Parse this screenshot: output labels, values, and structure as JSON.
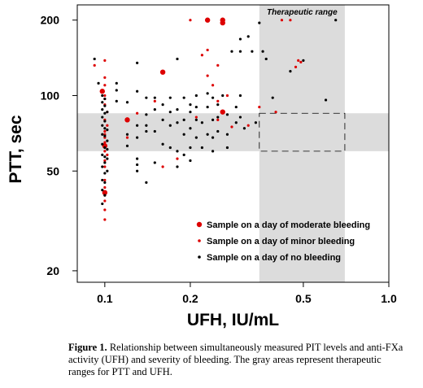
{
  "figure": {
    "caption_label": "Figure 1.",
    "caption_text": "Relationship between simultaneously measured PIT levels and anti-FXa activity (UFH) and severity of bleeding. The gray areas represent therapeutic ranges for PTT and UFH."
  },
  "chart_data": {
    "type": "scatter",
    "xlabel": "UFH, IU/mL",
    "ylabel": "PTT, sec",
    "x_scale": "log",
    "y_scale": "log",
    "xlim": [
      0.08,
      1.0
    ],
    "ylim": [
      18,
      230
    ],
    "x_ticks": [
      0.1,
      0.2,
      0.5,
      1.0
    ],
    "x_tick_labels": [
      "0.1",
      "0.2",
      "0.5",
      "1.0"
    ],
    "y_ticks": [
      20,
      50,
      100,
      200
    ],
    "y_tick_labels": [
      "20",
      "50",
      "100",
      "200"
    ],
    "grid": false,
    "legend_position": "lower-right",
    "annotation": "Therapeutic range",
    "therapeutic_ranges": {
      "ufh": [
        0.35,
        0.7
      ],
      "ptt": [
        60,
        85
      ]
    },
    "colors": {
      "bleeding": "#dd0000",
      "none": "#000000",
      "band": "#dcdcdc"
    },
    "series": [
      {
        "name": "Sample on a day of moderate bleeding",
        "color": "#dd0000",
        "marker_size": "large",
        "points": [
          [
            0.098,
            104
          ],
          [
            0.1,
            41
          ],
          [
            0.1,
            63
          ],
          [
            0.12,
            80
          ],
          [
            0.16,
            124
          ],
          [
            0.23,
            200
          ],
          [
            0.26,
            200
          ],
          [
            0.26,
            195
          ],
          [
            0.26,
            86
          ]
        ]
      },
      {
        "name": "Sample on a day of minor bleeding",
        "color": "#dd0000",
        "marker_size": "small",
        "points": [
          [
            0.092,
            132
          ],
          [
            0.1,
            138
          ],
          [
            0.1,
            118
          ],
          [
            0.1,
            110
          ],
          [
            0.1,
            100
          ],
          [
            0.1,
            97
          ],
          [
            0.1,
            92
          ],
          [
            0.1,
            80
          ],
          [
            0.1,
            72
          ],
          [
            0.1,
            70
          ],
          [
            0.1,
            68
          ],
          [
            0.1,
            65
          ],
          [
            0.1,
            60
          ],
          [
            0.1,
            55
          ],
          [
            0.1,
            52
          ],
          [
            0.1,
            46
          ],
          [
            0.1,
            43
          ],
          [
            0.1,
            40
          ],
          [
            0.1,
            38
          ],
          [
            0.1,
            35
          ],
          [
            0.1,
            32
          ],
          [
            0.102,
            86
          ],
          [
            0.102,
            76
          ],
          [
            0.102,
            58
          ],
          [
            0.12,
            68
          ],
          [
            0.13,
            85
          ],
          [
            0.15,
            95
          ],
          [
            0.16,
            52
          ],
          [
            0.18,
            56
          ],
          [
            0.2,
            200
          ],
          [
            0.21,
            82
          ],
          [
            0.22,
            145
          ],
          [
            0.23,
            152
          ],
          [
            0.23,
            120
          ],
          [
            0.24,
            110
          ],
          [
            0.25,
            132
          ],
          [
            0.25,
            95
          ],
          [
            0.25,
            80
          ],
          [
            0.27,
            100
          ],
          [
            0.28,
            75
          ],
          [
            0.32,
            76
          ],
          [
            0.35,
            90
          ],
          [
            0.4,
            86
          ],
          [
            0.42,
            200
          ],
          [
            0.45,
            200
          ],
          [
            0.47,
            130
          ],
          [
            0.48,
            138
          ],
          [
            0.49,
            136
          ]
        ]
      },
      {
        "name": "Sample on a day of no bleeding",
        "color": "#000000",
        "marker_size": "small",
        "points": [
          [
            0.092,
            140
          ],
          [
            0.095,
            112
          ],
          [
            0.098,
            100
          ],
          [
            0.098,
            94
          ],
          [
            0.098,
            88
          ],
          [
            0.098,
            82
          ],
          [
            0.098,
            76
          ],
          [
            0.098,
            70
          ],
          [
            0.098,
            64
          ],
          [
            0.098,
            58
          ],
          [
            0.098,
            52
          ],
          [
            0.098,
            46
          ],
          [
            0.098,
            42
          ],
          [
            0.098,
            37
          ],
          [
            0.1,
            97
          ],
          [
            0.1,
            91
          ],
          [
            0.1,
            85
          ],
          [
            0.1,
            79
          ],
          [
            0.1,
            74
          ],
          [
            0.1,
            69
          ],
          [
            0.1,
            62
          ],
          [
            0.1,
            57
          ],
          [
            0.1,
            54
          ],
          [
            0.1,
            49
          ],
          [
            0.1,
            45
          ],
          [
            0.1,
            40
          ],
          [
            0.102,
            86
          ],
          [
            0.102,
            73
          ],
          [
            0.102,
            66
          ],
          [
            0.102,
            61
          ],
          [
            0.102,
            56
          ],
          [
            0.102,
            50
          ],
          [
            0.11,
            112
          ],
          [
            0.11,
            105
          ],
          [
            0.11,
            95
          ],
          [
            0.12,
            94
          ],
          [
            0.12,
            70
          ],
          [
            0.12,
            63
          ],
          [
            0.13,
            135
          ],
          [
            0.13,
            104
          ],
          [
            0.13,
            76
          ],
          [
            0.13,
            68
          ],
          [
            0.13,
            56
          ],
          [
            0.13,
            53
          ],
          [
            0.13,
            50
          ],
          [
            0.14,
            98
          ],
          [
            0.14,
            84
          ],
          [
            0.14,
            76
          ],
          [
            0.14,
            72
          ],
          [
            0.14,
            45
          ],
          [
            0.15,
            98
          ],
          [
            0.15,
            88
          ],
          [
            0.15,
            72
          ],
          [
            0.15,
            54
          ],
          [
            0.16,
            92
          ],
          [
            0.16,
            80
          ],
          [
            0.16,
            64
          ],
          [
            0.17,
            98
          ],
          [
            0.17,
            86
          ],
          [
            0.17,
            76
          ],
          [
            0.17,
            62
          ],
          [
            0.18,
            140
          ],
          [
            0.18,
            88
          ],
          [
            0.18,
            78
          ],
          [
            0.18,
            60
          ],
          [
            0.18,
            52
          ],
          [
            0.19,
            98
          ],
          [
            0.19,
            80
          ],
          [
            0.19,
            70
          ],
          [
            0.19,
            58
          ],
          [
            0.2,
            92
          ],
          [
            0.2,
            86
          ],
          [
            0.2,
            74
          ],
          [
            0.2,
            62
          ],
          [
            0.2,
            55
          ],
          [
            0.21,
            100
          ],
          [
            0.21,
            90
          ],
          [
            0.21,
            80
          ],
          [
            0.21,
            68
          ],
          [
            0.22,
            78
          ],
          [
            0.22,
            62
          ],
          [
            0.23,
            102
          ],
          [
            0.23,
            90
          ],
          [
            0.23,
            70
          ],
          [
            0.24,
            98
          ],
          [
            0.24,
            80
          ],
          [
            0.24,
            68
          ],
          [
            0.24,
            60
          ],
          [
            0.25,
            92
          ],
          [
            0.25,
            82
          ],
          [
            0.25,
            72
          ],
          [
            0.26,
            100
          ],
          [
            0.27,
            84
          ],
          [
            0.27,
            70
          ],
          [
            0.27,
            62
          ],
          [
            0.28,
            150
          ],
          [
            0.29,
            90
          ],
          [
            0.29,
            78
          ],
          [
            0.3,
            168
          ],
          [
            0.3,
            150
          ],
          [
            0.3,
            100
          ],
          [
            0.3,
            82
          ],
          [
            0.31,
            74
          ],
          [
            0.32,
            172
          ],
          [
            0.33,
            150
          ],
          [
            0.34,
            78
          ],
          [
            0.35,
            195
          ],
          [
            0.36,
            150
          ],
          [
            0.37,
            140
          ],
          [
            0.39,
            98
          ],
          [
            0.45,
            125
          ],
          [
            0.5,
            138
          ],
          [
            0.6,
            96
          ],
          [
            0.65,
            200
          ]
        ]
      }
    ]
  }
}
